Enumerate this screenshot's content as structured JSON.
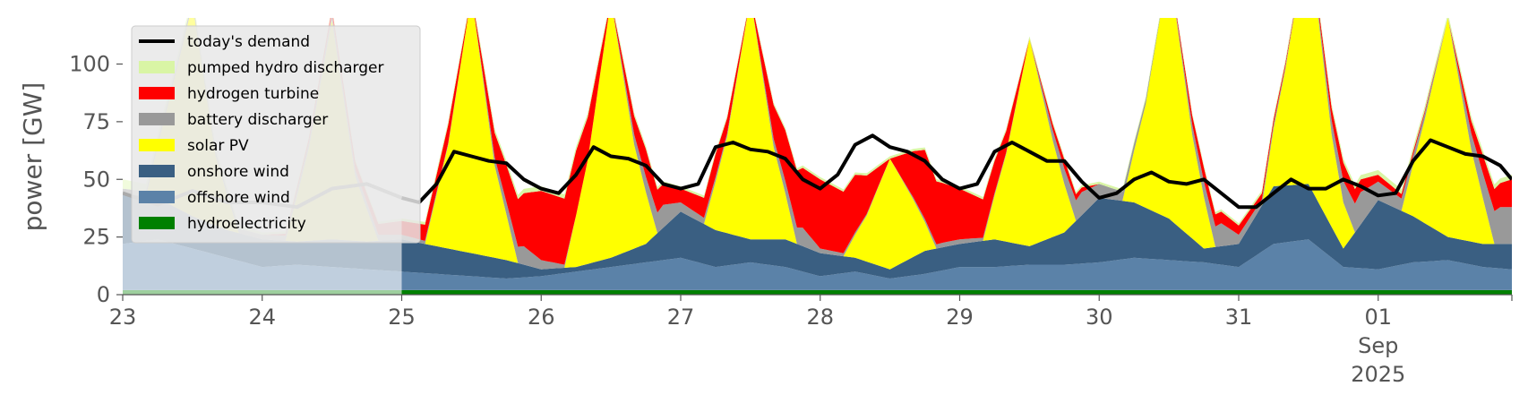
{
  "chart_data": {
    "type": "area",
    "ylabel": "power [GW]",
    "xlabel": "",
    "title": "",
    "ylim": [
      0,
      120
    ],
    "xlim": [
      "2025-08-23 00:00",
      "2025-09-01 23:00"
    ],
    "yticks": [
      0,
      25,
      50,
      75,
      100
    ],
    "xtick_labels": [
      {
        "date": "2025-08-23",
        "lines": [
          "23"
        ]
      },
      {
        "date": "2025-08-24",
        "lines": [
          "24"
        ]
      },
      {
        "date": "2025-08-25",
        "lines": [
          "25"
        ]
      },
      {
        "date": "2025-08-26",
        "lines": [
          "26"
        ]
      },
      {
        "date": "2025-08-27",
        "lines": [
          "27"
        ]
      },
      {
        "date": "2025-08-28",
        "lines": [
          "28"
        ]
      },
      {
        "date": "2025-08-29",
        "lines": [
          "29"
        ]
      },
      {
        "date": "2025-08-30",
        "lines": [
          "30"
        ]
      },
      {
        "date": "2025-08-31",
        "lines": [
          "31"
        ]
      },
      {
        "date": "2025-09-01",
        "lines": [
          "01",
          "Sep",
          "2025"
        ]
      }
    ],
    "grid": false,
    "legend_position": "upper-left",
    "legend_background": "#e8e8e8",
    "current_day_start": "2025-08-25 00:00",
    "past_overlay_color": "#ffffff",
    "demand": {
      "name": "today's demand",
      "color": "#000000",
      "past_color": "#aaaaaa",
      "x": [
        "2025-08-23 00:00",
        "2025-08-23 06:00",
        "2025-08-23 12:00",
        "2025-08-23 18:00",
        "2025-08-24 00:00",
        "2025-08-24 06:00",
        "2025-08-24 12:00",
        "2025-08-24 18:00",
        "2025-08-25 00:00",
        "2025-08-25 03:00",
        "2025-08-25 06:00",
        "2025-08-25 09:00",
        "2025-08-25 12:00",
        "2025-08-25 15:00",
        "2025-08-25 18:00",
        "2025-08-25 21:00",
        "2025-08-26 00:00",
        "2025-08-26 03:00",
        "2025-08-26 06:00",
        "2025-08-26 09:00",
        "2025-08-26 12:00",
        "2025-08-26 15:00",
        "2025-08-26 18:00",
        "2025-08-26 21:00",
        "2025-08-27 00:00",
        "2025-08-27 03:00",
        "2025-08-27 06:00",
        "2025-08-27 09:00",
        "2025-08-27 12:00",
        "2025-08-27 15:00",
        "2025-08-27 18:00",
        "2025-08-27 21:00",
        "2025-08-28 00:00",
        "2025-08-28 03:00",
        "2025-08-28 06:00",
        "2025-08-28 09:00",
        "2025-08-28 12:00",
        "2025-08-28 15:00",
        "2025-08-28 18:00",
        "2025-08-28 21:00",
        "2025-08-29 00:00",
        "2025-08-29 03:00",
        "2025-08-29 06:00",
        "2025-08-29 09:00",
        "2025-08-29 12:00",
        "2025-08-29 15:00",
        "2025-08-29 18:00",
        "2025-08-29 21:00",
        "2025-08-30 00:00",
        "2025-08-30 03:00",
        "2025-08-30 06:00",
        "2025-08-30 09:00",
        "2025-08-30 12:00",
        "2025-08-30 15:00",
        "2025-08-30 18:00",
        "2025-08-30 21:00",
        "2025-08-31 00:00",
        "2025-08-31 03:00",
        "2025-08-31 06:00",
        "2025-08-31 09:00",
        "2025-08-31 12:00",
        "2025-08-31 15:00",
        "2025-08-31 18:00",
        "2025-08-31 21:00",
        "2025-09-01 00:00",
        "2025-09-01 03:00",
        "2025-09-01 06:00",
        "2025-09-01 09:00",
        "2025-09-01 12:00",
        "2025-09-01 15:00",
        "2025-09-01 18:00",
        "2025-09-01 21:00",
        "2025-09-01 23:00"
      ],
      "y": [
        44,
        39,
        45,
        40,
        40,
        38,
        46,
        48,
        42,
        40,
        48,
        62,
        60,
        58,
        57,
        50,
        46,
        44,
        52,
        64,
        60,
        59,
        56,
        48,
        46,
        48,
        64,
        66,
        63,
        62,
        59,
        50,
        46,
        52,
        65,
        69,
        64,
        62,
        58,
        50,
        46,
        48,
        62,
        66,
        62,
        58,
        58,
        49,
        42,
        44,
        50,
        53,
        49,
        48,
        50,
        44,
        38,
        38,
        44,
        50,
        46,
        46,
        50,
        47,
        43,
        44,
        58,
        67,
        64,
        61,
        60,
        56,
        50
      ]
    },
    "series": [
      {
        "name": "hydroelectricity",
        "color": "#008000",
        "x": [
          "2025-08-23 00:00",
          "2025-08-25 00:00",
          "2025-08-27 00:00",
          "2025-08-29 00:00",
          "2025-08-31 00:00",
          "2025-09-01 23:00"
        ],
        "values": [
          2,
          2,
          2,
          2,
          2,
          2
        ]
      },
      {
        "name": "offshore wind",
        "color": "#5b82a8",
        "x": [
          "2025-08-23 00:00",
          "2025-08-23 06:00",
          "2025-08-23 12:00",
          "2025-08-23 18:00",
          "2025-08-24 00:00",
          "2025-08-24 06:00",
          "2025-08-24 12:00",
          "2025-08-24 18:00",
          "2025-08-25 00:00",
          "2025-08-25 06:00",
          "2025-08-25 12:00",
          "2025-08-25 18:00",
          "2025-08-26 00:00",
          "2025-08-26 06:00",
          "2025-08-26 12:00",
          "2025-08-26 18:00",
          "2025-08-27 00:00",
          "2025-08-27 06:00",
          "2025-08-27 12:00",
          "2025-08-27 18:00",
          "2025-08-28 00:00",
          "2025-08-28 06:00",
          "2025-08-28 12:00",
          "2025-08-28 18:00",
          "2025-08-29 00:00",
          "2025-08-29 06:00",
          "2025-08-29 12:00",
          "2025-08-29 18:00",
          "2025-08-30 00:00",
          "2025-08-30 06:00",
          "2025-08-30 12:00",
          "2025-08-30 18:00",
          "2025-08-31 00:00",
          "2025-08-31 06:00",
          "2025-08-31 12:00",
          "2025-08-31 18:00",
          "2025-09-01 00:00",
          "2025-09-01 06:00",
          "2025-09-01 12:00",
          "2025-09-01 18:00",
          "2025-09-01 23:00"
        ],
        "values": [
          20,
          22,
          18,
          14,
          10,
          11,
          10,
          9,
          8,
          7,
          6,
          5,
          6,
          8,
          10,
          12,
          14,
          10,
          12,
          10,
          6,
          8,
          5,
          7,
          10,
          10,
          11,
          11,
          12,
          14,
          13,
          12,
          10,
          20,
          22,
          10,
          9,
          12,
          13,
          10,
          9
        ]
      },
      {
        "name": "onshore wind",
        "color": "#3a5f82",
        "x": [
          "2025-08-23 00:00",
          "2025-08-23 06:00",
          "2025-08-23 12:00",
          "2025-08-23 18:00",
          "2025-08-24 00:00",
          "2025-08-24 06:00",
          "2025-08-24 12:00",
          "2025-08-24 18:00",
          "2025-08-25 00:00",
          "2025-08-25 06:00",
          "2025-08-25 12:00",
          "2025-08-25 18:00",
          "2025-08-26 00:00",
          "2025-08-26 06:00",
          "2025-08-26 12:00",
          "2025-08-26 18:00",
          "2025-08-27 00:00",
          "2025-08-27 06:00",
          "2025-08-27 12:00",
          "2025-08-27 18:00",
          "2025-08-28 00:00",
          "2025-08-28 06:00",
          "2025-08-28 12:00",
          "2025-08-28 18:00",
          "2025-08-29 00:00",
          "2025-08-29 06:00",
          "2025-08-29 12:00",
          "2025-08-29 18:00",
          "2025-08-30 00:00",
          "2025-08-30 06:00",
          "2025-08-30 12:00",
          "2025-08-30 18:00",
          "2025-08-31 00:00",
          "2025-08-31 06:00",
          "2025-08-31 12:00",
          "2025-08-31 18:00",
          "2025-09-01 00:00",
          "2025-09-01 06:00",
          "2025-09-01 12:00",
          "2025-09-01 18:00",
          "2025-09-01 23:00"
        ],
        "values": [
          22,
          18,
          14,
          12,
          12,
          10,
          12,
          12,
          14,
          12,
          10,
          8,
          3,
          2,
          4,
          8,
          20,
          16,
          10,
          12,
          10,
          6,
          4,
          10,
          10,
          12,
          8,
          14,
          28,
          24,
          18,
          6,
          10,
          25,
          24,
          8,
          30,
          20,
          10,
          10,
          11
        ]
      },
      {
        "name": "solar PV",
        "color": "#ffff00",
        "x": [
          "2025-08-23 00:00",
          "2025-08-23 04:00",
          "2025-08-23 08:00",
          "2025-08-23 12:00",
          "2025-08-23 16:00",
          "2025-08-23 20:00",
          "2025-08-24 00:00",
          "2025-08-24 04:00",
          "2025-08-24 08:00",
          "2025-08-24 12:00",
          "2025-08-24 16:00",
          "2025-08-24 20:00",
          "2025-08-25 00:00",
          "2025-08-25 04:00",
          "2025-08-25 08:00",
          "2025-08-25 12:00",
          "2025-08-25 16:00",
          "2025-08-25 20:00",
          "2025-08-26 00:00",
          "2025-08-26 04:00",
          "2025-08-26 08:00",
          "2025-08-26 12:00",
          "2025-08-26 16:00",
          "2025-08-26 20:00",
          "2025-08-27 00:00",
          "2025-08-27 04:00",
          "2025-08-27 08:00",
          "2025-08-27 12:00",
          "2025-08-27 16:00",
          "2025-08-27 20:00",
          "2025-08-28 00:00",
          "2025-08-28 04:00",
          "2025-08-28 08:00",
          "2025-08-28 12:00",
          "2025-08-28 16:00",
          "2025-08-28 20:00",
          "2025-08-29 00:00",
          "2025-08-29 04:00",
          "2025-08-29 08:00",
          "2025-08-29 12:00",
          "2025-08-29 16:00",
          "2025-08-29 20:00",
          "2025-08-30 00:00",
          "2025-08-30 04:00",
          "2025-08-30 08:00",
          "2025-08-30 12:00",
          "2025-08-30 16:00",
          "2025-08-30 20:00",
          "2025-08-31 00:00",
          "2025-08-31 04:00",
          "2025-08-31 08:00",
          "2025-08-31 12:00",
          "2025-08-31 16:00",
          "2025-08-31 20:00",
          "2025-09-01 00:00",
          "2025-09-01 04:00",
          "2025-09-01 08:00",
          "2025-09-01 12:00",
          "2025-09-01 16:00",
          "2025-09-01 20:00",
          "2025-09-01 23:00"
        ],
        "values": [
          0,
          0,
          45,
          92,
          30,
          0,
          0,
          0,
          40,
          95,
          28,
          0,
          0,
          0,
          45,
          112,
          40,
          0,
          0,
          0,
          45,
          112,
          45,
          0,
          0,
          0,
          42,
          105,
          40,
          0,
          0,
          0,
          20,
          48,
          25,
          0,
          0,
          0,
          38,
          90,
          42,
          0,
          0,
          0,
          45,
          110,
          45,
          0,
          0,
          0,
          50,
          110,
          40,
          0,
          0,
          0,
          45,
          95,
          40,
          0,
          0
        ]
      },
      {
        "name": "battery discharger",
        "color": "#999999",
        "x": [
          "2025-08-23 00:00",
          "2025-08-23 18:00",
          "2025-08-24 00:00",
          "2025-08-24 18:00",
          "2025-08-25 00:00",
          "2025-08-25 12:00",
          "2025-08-25 21:00",
          "2025-08-26 00:00",
          "2025-08-26 06:00",
          "2025-08-26 12:00",
          "2025-08-26 21:00",
          "2025-08-27 00:00",
          "2025-08-27 12:00",
          "2025-08-27 21:00",
          "2025-08-28 00:00",
          "2025-08-28 12:00",
          "2025-08-28 21:00",
          "2025-08-29 00:00",
          "2025-08-29 12:00",
          "2025-08-29 21:00",
          "2025-08-30 00:00",
          "2025-08-30 12:00",
          "2025-08-30 21:00",
          "2025-08-31 00:00",
          "2025-08-31 12:00",
          "2025-08-31 21:00",
          "2025-09-01 00:00",
          "2025-09-01 12:00",
          "2025-09-01 21:00",
          "2025-09-01 23:00"
        ],
        "values": [
          2,
          2,
          2,
          3,
          2,
          0,
          8,
          4,
          0,
          0,
          10,
          4,
          0,
          8,
          2,
          0,
          2,
          2,
          0,
          10,
          6,
          0,
          10,
          4,
          0,
          14,
          8,
          0,
          16,
          16
        ]
      },
      {
        "name": "hydrogen turbine",
        "color": "#ff0000",
        "x": [
          "2025-08-23 00:00",
          "2025-08-24 00:00",
          "2025-08-24 18:00",
          "2025-08-25 00:00",
          "2025-08-25 08:00",
          "2025-08-25 12:00",
          "2025-08-25 18:00",
          "2025-08-26 00:00",
          "2025-08-26 06:00",
          "2025-08-26 12:00",
          "2025-08-26 18:00",
          "2025-08-27 00:00",
          "2025-08-27 06:00",
          "2025-08-27 12:00",
          "2025-08-27 18:00",
          "2025-08-28 00:00",
          "2025-08-28 06:00",
          "2025-08-28 12:00",
          "2025-08-28 18:00",
          "2025-08-29 00:00",
          "2025-08-29 06:00",
          "2025-08-29 12:00",
          "2025-08-29 18:00",
          "2025-08-30 00:00",
          "2025-08-30 12:00",
          "2025-08-30 18:00",
          "2025-08-31 00:00",
          "2025-08-31 12:00",
          "2025-08-31 18:00",
          "2025-09-01 00:00",
          "2025-09-01 12:00",
          "2025-09-01 18:00",
          "2025-09-01 23:00"
        ],
        "values": [
          0,
          0,
          4,
          6,
          8,
          0,
          16,
          30,
          28,
          0,
          12,
          6,
          10,
          0,
          22,
          30,
          25,
          0,
          30,
          22,
          14,
          0,
          4,
          0,
          0,
          6,
          4,
          0,
          8,
          3,
          0,
          8,
          12
        ]
      },
      {
        "name": "pumped hydro discharger",
        "color": "#d9f5a5",
        "x": [
          "2025-08-23 00:00",
          "2025-08-23 12:00",
          "2025-08-24 00:00",
          "2025-08-25 00:00",
          "2025-08-26 00:00",
          "2025-08-27 00:00",
          "2025-08-28 00:00",
          "2025-08-29 00:00",
          "2025-08-30 00:00",
          "2025-08-31 00:00",
          "2025-09-01 00:00",
          "2025-09-01 23:00"
        ],
        "values": [
          4,
          2,
          1,
          1,
          2,
          1,
          1,
          1,
          1,
          1,
          2,
          2
        ]
      }
    ],
    "legend_entries": [
      {
        "label": "today's demand",
        "color": "#000000",
        "kind": "line"
      },
      {
        "label": "pumped hydro discharger",
        "color": "#d9f5a5",
        "kind": "patch"
      },
      {
        "label": "hydrogen turbine",
        "color": "#ff0000",
        "kind": "patch"
      },
      {
        "label": "battery discharger",
        "color": "#999999",
        "kind": "patch"
      },
      {
        "label": "solar PV",
        "color": "#ffff00",
        "kind": "patch"
      },
      {
        "label": "onshore wind",
        "color": "#3a5f82",
        "kind": "patch"
      },
      {
        "label": "offshore wind",
        "color": "#5b82a8",
        "kind": "patch"
      },
      {
        "label": "hydroelectricity",
        "color": "#008000",
        "kind": "patch"
      }
    ]
  }
}
